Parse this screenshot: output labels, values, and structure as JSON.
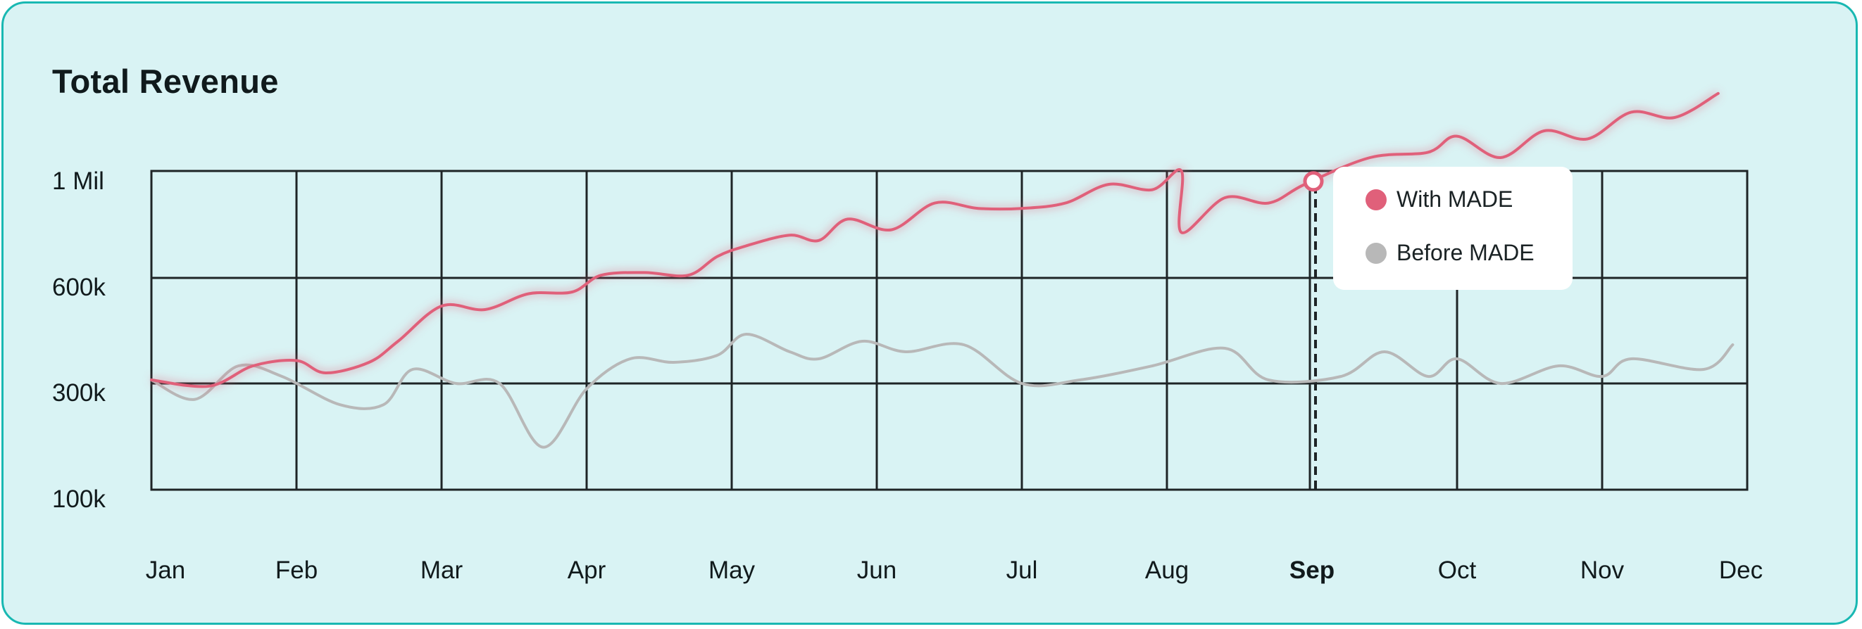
{
  "title": "Total Revenue",
  "colors": {
    "with_made": "#e0607a",
    "before_made": "#b8b8b8",
    "grid": "#1e2426",
    "background": "#d9f3f4",
    "border": "#19b8b2"
  },
  "legend": {
    "with_made": "With MADE",
    "before_made": "Before MADE"
  },
  "chart_data": {
    "type": "line",
    "title": "Total Revenue",
    "categories": [
      "Jan",
      "Feb",
      "Mar",
      "Apr",
      "May",
      "Jun",
      "Jul",
      "Aug",
      "Sep",
      "Oct",
      "Nov",
      "Dec"
    ],
    "highlighted_category": "Sep",
    "y_tick_labels": [
      "1 Mil",
      "600k",
      "300k",
      "100k"
    ],
    "y_scale": "non-linear (ticks evenly spaced)",
    "grid": true,
    "legend_position": "top-right",
    "series": [
      {
        "name": "With MADE",
        "color": "#e0607a",
        "values_k": [
          [
            0.0,
            310
          ],
          [
            0.4,
            295
          ],
          [
            0.7,
            350
          ],
          [
            1.0,
            365
          ],
          [
            1.2,
            330
          ],
          [
            1.5,
            360
          ],
          [
            1.7,
            420
          ],
          [
            2.0,
            520
          ],
          [
            2.3,
            510
          ],
          [
            2.6,
            555
          ],
          [
            2.9,
            560
          ],
          [
            3.1,
            610
          ],
          [
            3.4,
            620
          ],
          [
            3.7,
            610
          ],
          [
            3.9,
            680
          ],
          [
            4.1,
            720
          ],
          [
            4.4,
            760
          ],
          [
            4.6,
            740
          ],
          [
            4.8,
            820
          ],
          [
            5.1,
            780
          ],
          [
            5.4,
            880
          ],
          [
            5.7,
            860
          ],
          [
            6.0,
            860
          ],
          [
            6.3,
            880
          ],
          [
            6.6,
            950
          ],
          [
            6.9,
            930
          ],
          [
            7.1,
            1000
          ],
          [
            7.1,
            770
          ],
          [
            7.4,
            900
          ],
          [
            7.7,
            880
          ],
          [
            7.95,
            950
          ],
          [
            8.4,
            1050
          ],
          [
            8.8,
            1070
          ],
          [
            9.0,
            1130
          ],
          [
            9.3,
            1050
          ],
          [
            9.6,
            1150
          ],
          [
            9.9,
            1120
          ],
          [
            10.2,
            1220
          ],
          [
            10.5,
            1200
          ],
          [
            10.8,
            1290
          ]
        ]
      },
      {
        "name": "Before MADE",
        "color": "#b8b8b8",
        "values_k": [
          [
            0.0,
            310
          ],
          [
            0.3,
            270
          ],
          [
            0.6,
            350
          ],
          [
            0.9,
            320
          ],
          [
            1.3,
            260
          ],
          [
            1.6,
            260
          ],
          [
            1.8,
            340
          ],
          [
            2.1,
            300
          ],
          [
            2.4,
            300
          ],
          [
            2.7,
            180
          ],
          [
            3.0,
            290
          ],
          [
            3.3,
            370
          ],
          [
            3.6,
            360
          ],
          [
            3.9,
            380
          ],
          [
            4.1,
            440
          ],
          [
            4.4,
            390
          ],
          [
            4.6,
            370
          ],
          [
            4.9,
            420
          ],
          [
            5.2,
            390
          ],
          [
            5.6,
            410
          ],
          [
            6.0,
            300
          ],
          [
            6.4,
            310
          ],
          [
            6.9,
            350
          ],
          [
            7.4,
            400
          ],
          [
            7.7,
            310
          ],
          [
            8.2,
            320
          ],
          [
            8.5,
            390
          ],
          [
            8.8,
            320
          ],
          [
            9.0,
            370
          ],
          [
            9.3,
            300
          ],
          [
            9.7,
            350
          ],
          [
            10.0,
            320
          ],
          [
            10.2,
            370
          ],
          [
            10.7,
            340
          ],
          [
            10.9,
            410
          ]
        ]
      }
    ],
    "marker": {
      "category": "Sep",
      "series": "With MADE"
    }
  }
}
